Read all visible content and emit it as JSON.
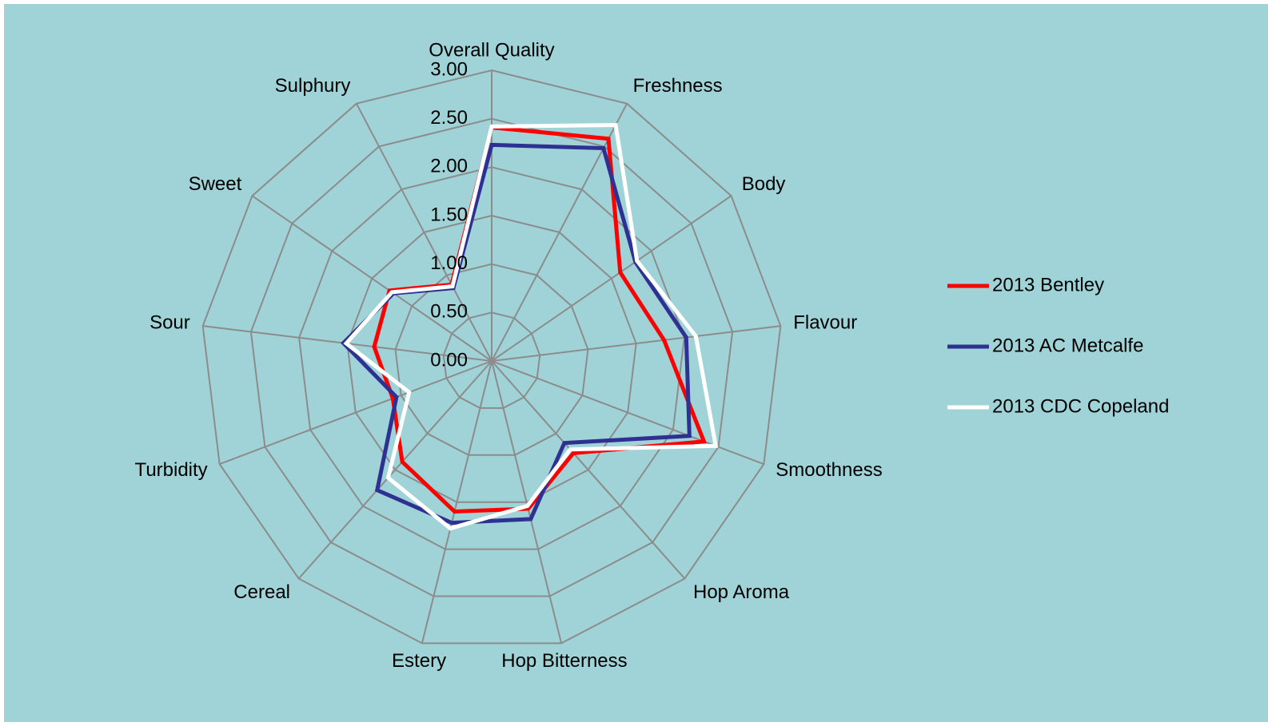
{
  "chart_data": {
    "type": "radar",
    "categories": [
      "Overall Quality",
      "Freshness",
      "Body",
      "Flavour",
      "Smoothness",
      "Hop Aroma",
      "Hop Bitterness",
      "Estery",
      "Cereal",
      "Turbidity",
      "Sour",
      "Sweet",
      "Sulphury"
    ],
    "series": [
      {
        "name": "2013 Bentley",
        "color": "#ff0000",
        "values": [
          2.41,
          2.59,
          1.61,
          1.79,
          2.34,
          1.27,
          1.57,
          1.6,
          1.39,
          1.09,
          1.22,
          1.28,
          0.89
        ]
      },
      {
        "name": "2013 AC Metcalfe",
        "color": "#2e3192",
        "values": [
          2.23,
          2.48,
          1.8,
          2.02,
          2.18,
          1.13,
          1.68,
          1.72,
          1.78,
          1.05,
          1.54,
          1.23,
          0.85
        ]
      },
      {
        "name": "2013 CDC Copeland",
        "color": "#ffffff",
        "values": [
          2.42,
          2.75,
          1.82,
          2.12,
          2.47,
          1.22,
          1.54,
          1.78,
          1.61,
          0.91,
          1.51,
          1.25,
          0.87
        ]
      }
    ],
    "rlim": [
      0,
      3
    ],
    "rticks": [
      {
        "value": 0,
        "label": "0.00"
      },
      {
        "value": 0.5,
        "label": "0.50"
      },
      {
        "value": 1,
        "label": "1.00"
      },
      {
        "value": 1.5,
        "label": "1.50"
      },
      {
        "value": 2,
        "label": "2.00"
      },
      {
        "value": 2.5,
        "label": "2.50"
      },
      {
        "value": 3,
        "label": "3.00"
      }
    ],
    "grid": true,
    "legend": "right"
  }
}
